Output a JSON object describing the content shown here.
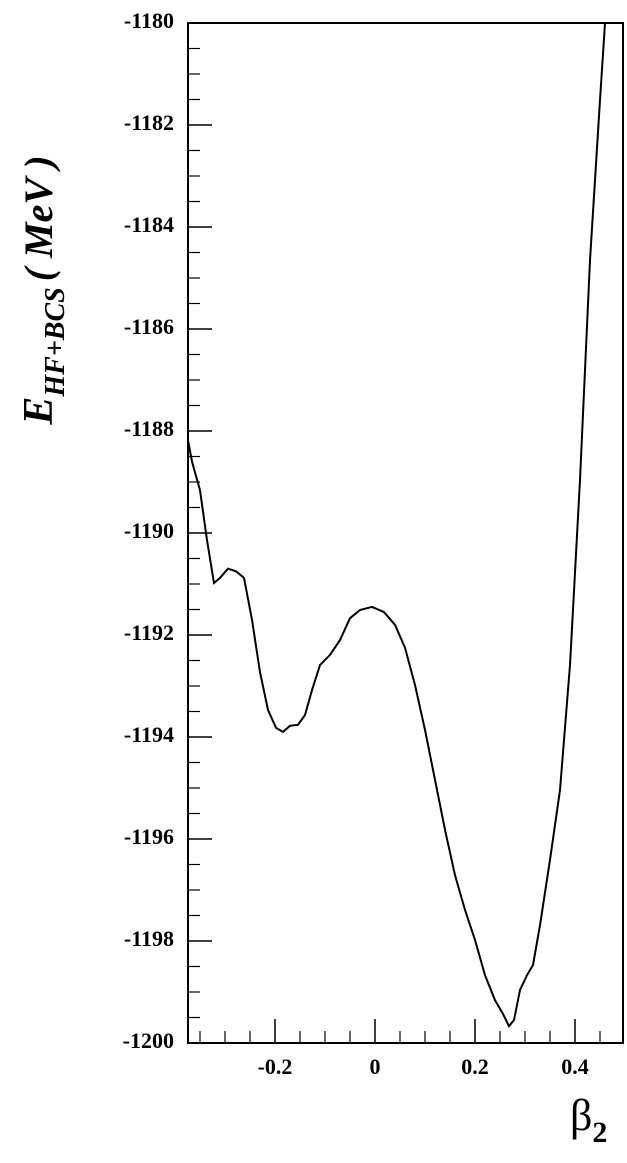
{
  "chart_data": {
    "type": "line",
    "y_label": {
      "main": "E",
      "sub": "HF+BCS",
      "unit": "( MeV )"
    },
    "x_label": {
      "main": "β",
      "sub": "2"
    },
    "color": "#000000",
    "x": [
      -0.374,
      -0.366,
      -0.35,
      -0.336,
      -0.322,
      -0.31,
      -0.294,
      -0.278,
      -0.262,
      -0.246,
      -0.23,
      -0.214,
      -0.198,
      -0.184,
      -0.17,
      -0.154,
      -0.14,
      -0.126,
      -0.11,
      -0.09,
      -0.07,
      -0.05,
      -0.03,
      -0.006,
      0.018,
      0.04,
      0.06,
      0.08,
      0.1,
      0.12,
      0.14,
      0.16,
      0.18,
      0.2,
      0.22,
      0.24,
      0.256,
      0.268,
      0.278,
      0.29,
      0.304,
      0.316,
      0.33,
      0.35,
      0.37,
      0.39,
      0.41,
      0.43,
      0.45,
      0.46
    ],
    "values": [
      -1188.18,
      -1188.6,
      -1189.16,
      -1190.14,
      -1190.98,
      -1190.88,
      -1190.7,
      -1190.75,
      -1190.88,
      -1191.7,
      -1192.73,
      -1193.47,
      -1193.82,
      -1193.9,
      -1193.78,
      -1193.76,
      -1193.57,
      -1193.08,
      -1192.59,
      -1192.39,
      -1192.1,
      -1191.67,
      -1191.51,
      -1191.45,
      -1191.55,
      -1191.8,
      -1192.25,
      -1192.98,
      -1193.86,
      -1194.84,
      -1195.82,
      -1196.71,
      -1197.39,
      -1197.98,
      -1198.67,
      -1199.16,
      -1199.43,
      -1199.67,
      -1199.55,
      -1198.96,
      -1198.67,
      -1198.47,
      -1197.69,
      -1196.41,
      -1195.04,
      -1192.59,
      -1188.96,
      -1184.65,
      -1181.51,
      -1180.0
    ],
    "xlim": [
      -0.374,
      0.496
    ],
    "ylim": [
      -1200,
      -1180
    ],
    "xticks": [
      -0.2,
      0,
      0.2,
      0.4
    ],
    "yticks": [
      -1200,
      -1198,
      -1196,
      -1194,
      -1192,
      -1190,
      -1188,
      -1186,
      -1184,
      -1182,
      -1180
    ],
    "xminorticks": [
      -0.35,
      -0.3,
      -0.25,
      -0.15,
      -0.1,
      -0.05,
      0.05,
      0.1,
      0.15,
      0.25,
      0.3,
      0.35,
      0.45
    ],
    "yminorticks": [
      -1199.5,
      -1199,
      -1198.5,
      -1197.5,
      -1197,
      -1196.5,
      -1195.5,
      -1195,
      -1194.5,
      -1193.5,
      -1193,
      -1192.5,
      -1191.5,
      -1191,
      -1190.5,
      -1189.5,
      -1189,
      -1188.5,
      -1187.5,
      -1187,
      -1186.5,
      -1185.5,
      -1185,
      -1184.5,
      -1183.5,
      -1183,
      -1182.5,
      -1181.5,
      -1181,
      -1180.5
    ]
  }
}
